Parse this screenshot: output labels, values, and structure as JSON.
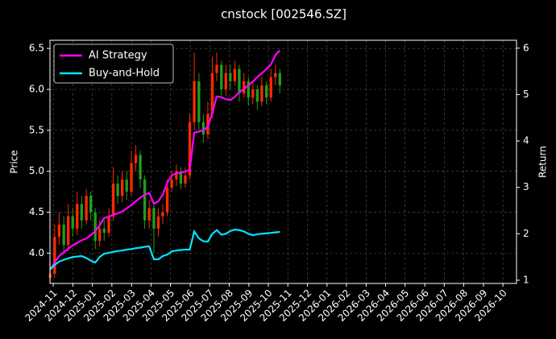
{
  "chart_data": {
    "type": "candlestick",
    "title": "cnstock [002546.SZ]",
    "ylabel": "Price",
    "y2label": "Return",
    "x": [
      2024.82,
      2024.839,
      2024.858,
      2024.878,
      2024.897,
      2024.916,
      2024.935,
      2024.954,
      2024.974,
      2024.993,
      2025.012,
      2025.031,
      2025.05,
      2025.07,
      2025.089,
      2025.108,
      2025.127,
      2025.146,
      2025.166,
      2025.185,
      2025.204,
      2025.223,
      2025.242,
      2025.262,
      2025.281,
      2025.3,
      2025.319,
      2025.338,
      2025.358,
      2025.377,
      2025.396,
      2025.415,
      2025.434,
      2025.454,
      2025.473,
      2025.492,
      2025.511,
      2025.53,
      2025.55,
      2025.569,
      2025.588,
      2025.607,
      2025.626,
      2025.646,
      2025.665,
      2025.684,
      2025.703,
      2025.722,
      2025.742,
      2025.761,
      2025.78,
      2025.799
    ],
    "open": [
      3.7,
      3.75,
      4.2,
      4.35,
      4.1,
      4.45,
      4.3,
      4.6,
      4.4,
      4.7,
      4.5,
      4.15,
      4.3,
      4.25,
      4.45,
      4.85,
      4.7,
      4.9,
      4.75,
      5.1,
      5.2,
      4.9,
      4.4,
      4.55,
      4.3,
      4.45,
      4.5,
      4.8,
      4.9,
      5.0,
      4.85,
      4.95,
      5.6,
      6.1,
      5.6,
      5.45,
      5.7,
      6.2,
      6.3,
      6.0,
      6.2,
      6.1,
      6.25,
      5.95,
      6.1,
      5.9,
      6.0,
      5.85,
      6.05,
      5.9,
      6.15,
      6.2
    ],
    "high": [
      3.9,
      4.35,
      4.5,
      4.45,
      4.6,
      4.55,
      4.75,
      4.7,
      4.78,
      4.75,
      4.55,
      4.4,
      4.4,
      4.55,
      5.05,
      4.95,
      5.0,
      5.0,
      5.25,
      5.32,
      5.25,
      4.95,
      4.65,
      4.6,
      4.55,
      4.6,
      4.9,
      5.0,
      5.08,
      5.05,
      5.05,
      5.7,
      6.45,
      6.2,
      5.7,
      5.85,
      6.4,
      6.45,
      6.35,
      6.3,
      6.3,
      6.35,
      6.3,
      6.2,
      6.15,
      6.1,
      6.05,
      6.15,
      6.1,
      6.25,
      6.3,
      6.25
    ],
    "low": [
      3.65,
      3.7,
      4.1,
      3.98,
      4.02,
      4.2,
      4.22,
      4.3,
      4.35,
      4.4,
      4.05,
      4.08,
      4.15,
      4.2,
      4.4,
      4.6,
      4.62,
      4.65,
      4.7,
      5.0,
      4.8,
      4.3,
      4.3,
      4.0,
      4.2,
      4.35,
      4.45,
      4.75,
      4.82,
      4.78,
      4.8,
      4.9,
      5.5,
      5.5,
      5.35,
      5.4,
      5.65,
      6.1,
      5.9,
      5.92,
      6.0,
      6.05,
      5.85,
      5.9,
      5.8,
      5.82,
      5.75,
      5.8,
      5.82,
      5.85,
      6.05,
      5.95
    ],
    "close": [
      3.75,
      4.2,
      4.35,
      4.1,
      4.45,
      4.3,
      4.6,
      4.4,
      4.7,
      4.5,
      4.15,
      4.3,
      4.25,
      4.45,
      4.85,
      4.7,
      4.9,
      4.75,
      5.1,
      5.2,
      4.9,
      4.4,
      4.55,
      4.3,
      4.45,
      4.5,
      4.8,
      4.9,
      5.0,
      4.85,
      4.95,
      5.6,
      6.1,
      5.6,
      5.45,
      5.7,
      6.2,
      6.3,
      6.0,
      6.2,
      6.1,
      6.25,
      5.95,
      6.1,
      5.9,
      6.0,
      5.85,
      6.05,
      5.9,
      6.15,
      6.2,
      6.05
    ],
    "up_color": "#ff2a00",
    "down_color": "#1f9e1f",
    "series": [
      {
        "name": "AI Strategy",
        "color": "#ff00ff",
        "axis": "y2",
        "values": [
          1.23,
          1.38,
          1.52,
          1.6,
          1.68,
          1.75,
          1.8,
          1.86,
          1.9,
          1.97,
          2.06,
          2.18,
          2.34,
          2.37,
          2.41,
          2.44,
          2.48,
          2.55,
          2.62,
          2.7,
          2.78,
          2.84,
          2.88,
          2.65,
          2.7,
          2.84,
          3.1,
          3.26,
          3.3,
          3.32,
          3.34,
          3.38,
          4.18,
          4.2,
          4.24,
          4.3,
          4.6,
          4.96,
          4.94,
          4.9,
          4.88,
          4.95,
          5.05,
          5.12,
          5.2,
          5.28,
          5.38,
          5.46,
          5.55,
          5.65,
          5.85,
          5.95
        ]
      },
      {
        "name": "Buy-and-Hold",
        "color": "#00e5ff",
        "axis": "y2",
        "values": [
          1.23,
          1.33,
          1.4,
          1.44,
          1.47,
          1.5,
          1.51,
          1.52,
          1.48,
          1.42,
          1.38,
          1.5,
          1.57,
          1.59,
          1.61,
          1.63,
          1.64,
          1.66,
          1.67,
          1.69,
          1.7,
          1.72,
          1.73,
          1.45,
          1.45,
          1.52,
          1.55,
          1.62,
          1.64,
          1.65,
          1.66,
          1.66,
          2.05,
          1.9,
          1.84,
          1.83,
          2.0,
          2.08,
          1.98,
          2.0,
          2.06,
          2.09,
          2.08,
          2.05,
          2.0,
          1.97,
          1.99,
          2.0,
          2.01,
          2.02,
          2.03,
          2.04
        ]
      }
    ],
    "xlim": [
      2024.819,
      2026.808
    ],
    "xticks": [
      {
        "value": 2024.833,
        "label": "2024-11"
      },
      {
        "value": 2024.917,
        "label": "2024-12"
      },
      {
        "value": 2025.0,
        "label": "2025-01"
      },
      {
        "value": 2025.083,
        "label": "2025-02"
      },
      {
        "value": 2025.167,
        "label": "2025-03"
      },
      {
        "value": 2025.25,
        "label": "2025-04"
      },
      {
        "value": 2025.333,
        "label": "2025-05"
      },
      {
        "value": 2025.417,
        "label": "2025-06"
      },
      {
        "value": 2025.5,
        "label": "2025-07"
      },
      {
        "value": 2025.583,
        "label": "2025-08"
      },
      {
        "value": 2025.667,
        "label": "2025-09"
      },
      {
        "value": 2025.75,
        "label": "2025-10"
      },
      {
        "value": 2025.833,
        "label": "2025-11"
      },
      {
        "value": 2025.917,
        "label": "2025-12"
      },
      {
        "value": 2026.0,
        "label": "2026-01"
      },
      {
        "value": 2026.083,
        "label": "2026-02"
      },
      {
        "value": 2026.167,
        "label": "2026-03"
      },
      {
        "value": 2026.25,
        "label": "2026-04"
      },
      {
        "value": 2026.333,
        "label": "2026-05"
      },
      {
        "value": 2026.417,
        "label": "2026-06"
      },
      {
        "value": 2026.5,
        "label": "2026-07"
      },
      {
        "value": 2026.583,
        "label": "2026-08"
      },
      {
        "value": 2026.667,
        "label": "2026-09"
      },
      {
        "value": 2026.75,
        "label": "2026-10"
      }
    ],
    "ylim": [
      3.63,
      6.6
    ],
    "yticks": [
      {
        "value": 4,
        "label": "4.0"
      },
      4.5,
      {
        "value": 5,
        "label": "5.0"
      },
      5.5,
      {
        "value": 6,
        "label": "6.0"
      },
      6.5
    ],
    "y2lim": [
      0.93,
      6.17
    ],
    "y2ticks": [
      1,
      2,
      3,
      4,
      5,
      6
    ],
    "grid": true,
    "legend": "upper left"
  }
}
